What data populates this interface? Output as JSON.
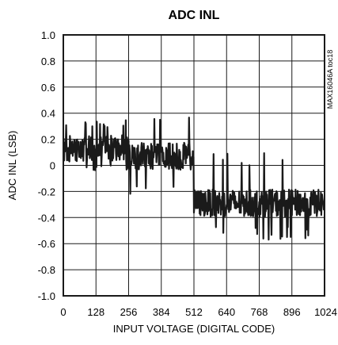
{
  "chart_data": {
    "type": "line",
    "title": "ADC INL",
    "xlabel": "INPUT VOLTAGE (DIGITAL CODE)",
    "ylabel": "ADC INL (LSB)",
    "xlim": [
      0,
      1024
    ],
    "ylim": [
      -1.0,
      1.0
    ],
    "xticks": [
      0,
      128,
      256,
      384,
      512,
      640,
      768,
      896,
      1024
    ],
    "xtick_labels": [
      "0",
      "128",
      "256",
      "384",
      "512",
      "640",
      "768",
      "896",
      "1024"
    ],
    "yticks": [
      1.0,
      0.8,
      0.6,
      0.4,
      0.2,
      0,
      -0.2,
      -0.4,
      -0.6,
      -0.8,
      -1.0
    ],
    "ytick_labels": [
      "1.0",
      "0.8",
      "0.6",
      "0.4",
      "0.2",
      "0",
      "-0.2",
      "-0.4",
      "-0.6",
      "-0.8",
      "-1.0"
    ],
    "grid": true,
    "note": "MAX16046A toc18",
    "line_color": "#1a1a1a",
    "series": [
      {
        "segments": [
          {
            "x_start": 0,
            "x_end": 256,
            "center": 0.13,
            "noise": 0.075,
            "band": [
              -0.05,
              0.35
            ]
          },
          {
            "x_start": 256,
            "x_end": 512,
            "center": 0.07,
            "noise": 0.075,
            "band": [
              -0.23,
              0.37
            ]
          },
          {
            "x_start": 512,
            "x_end": 1024,
            "center": -0.29,
            "noise": 0.075,
            "band": [
              -0.57,
              0.1
            ]
          }
        ]
      }
    ]
  }
}
